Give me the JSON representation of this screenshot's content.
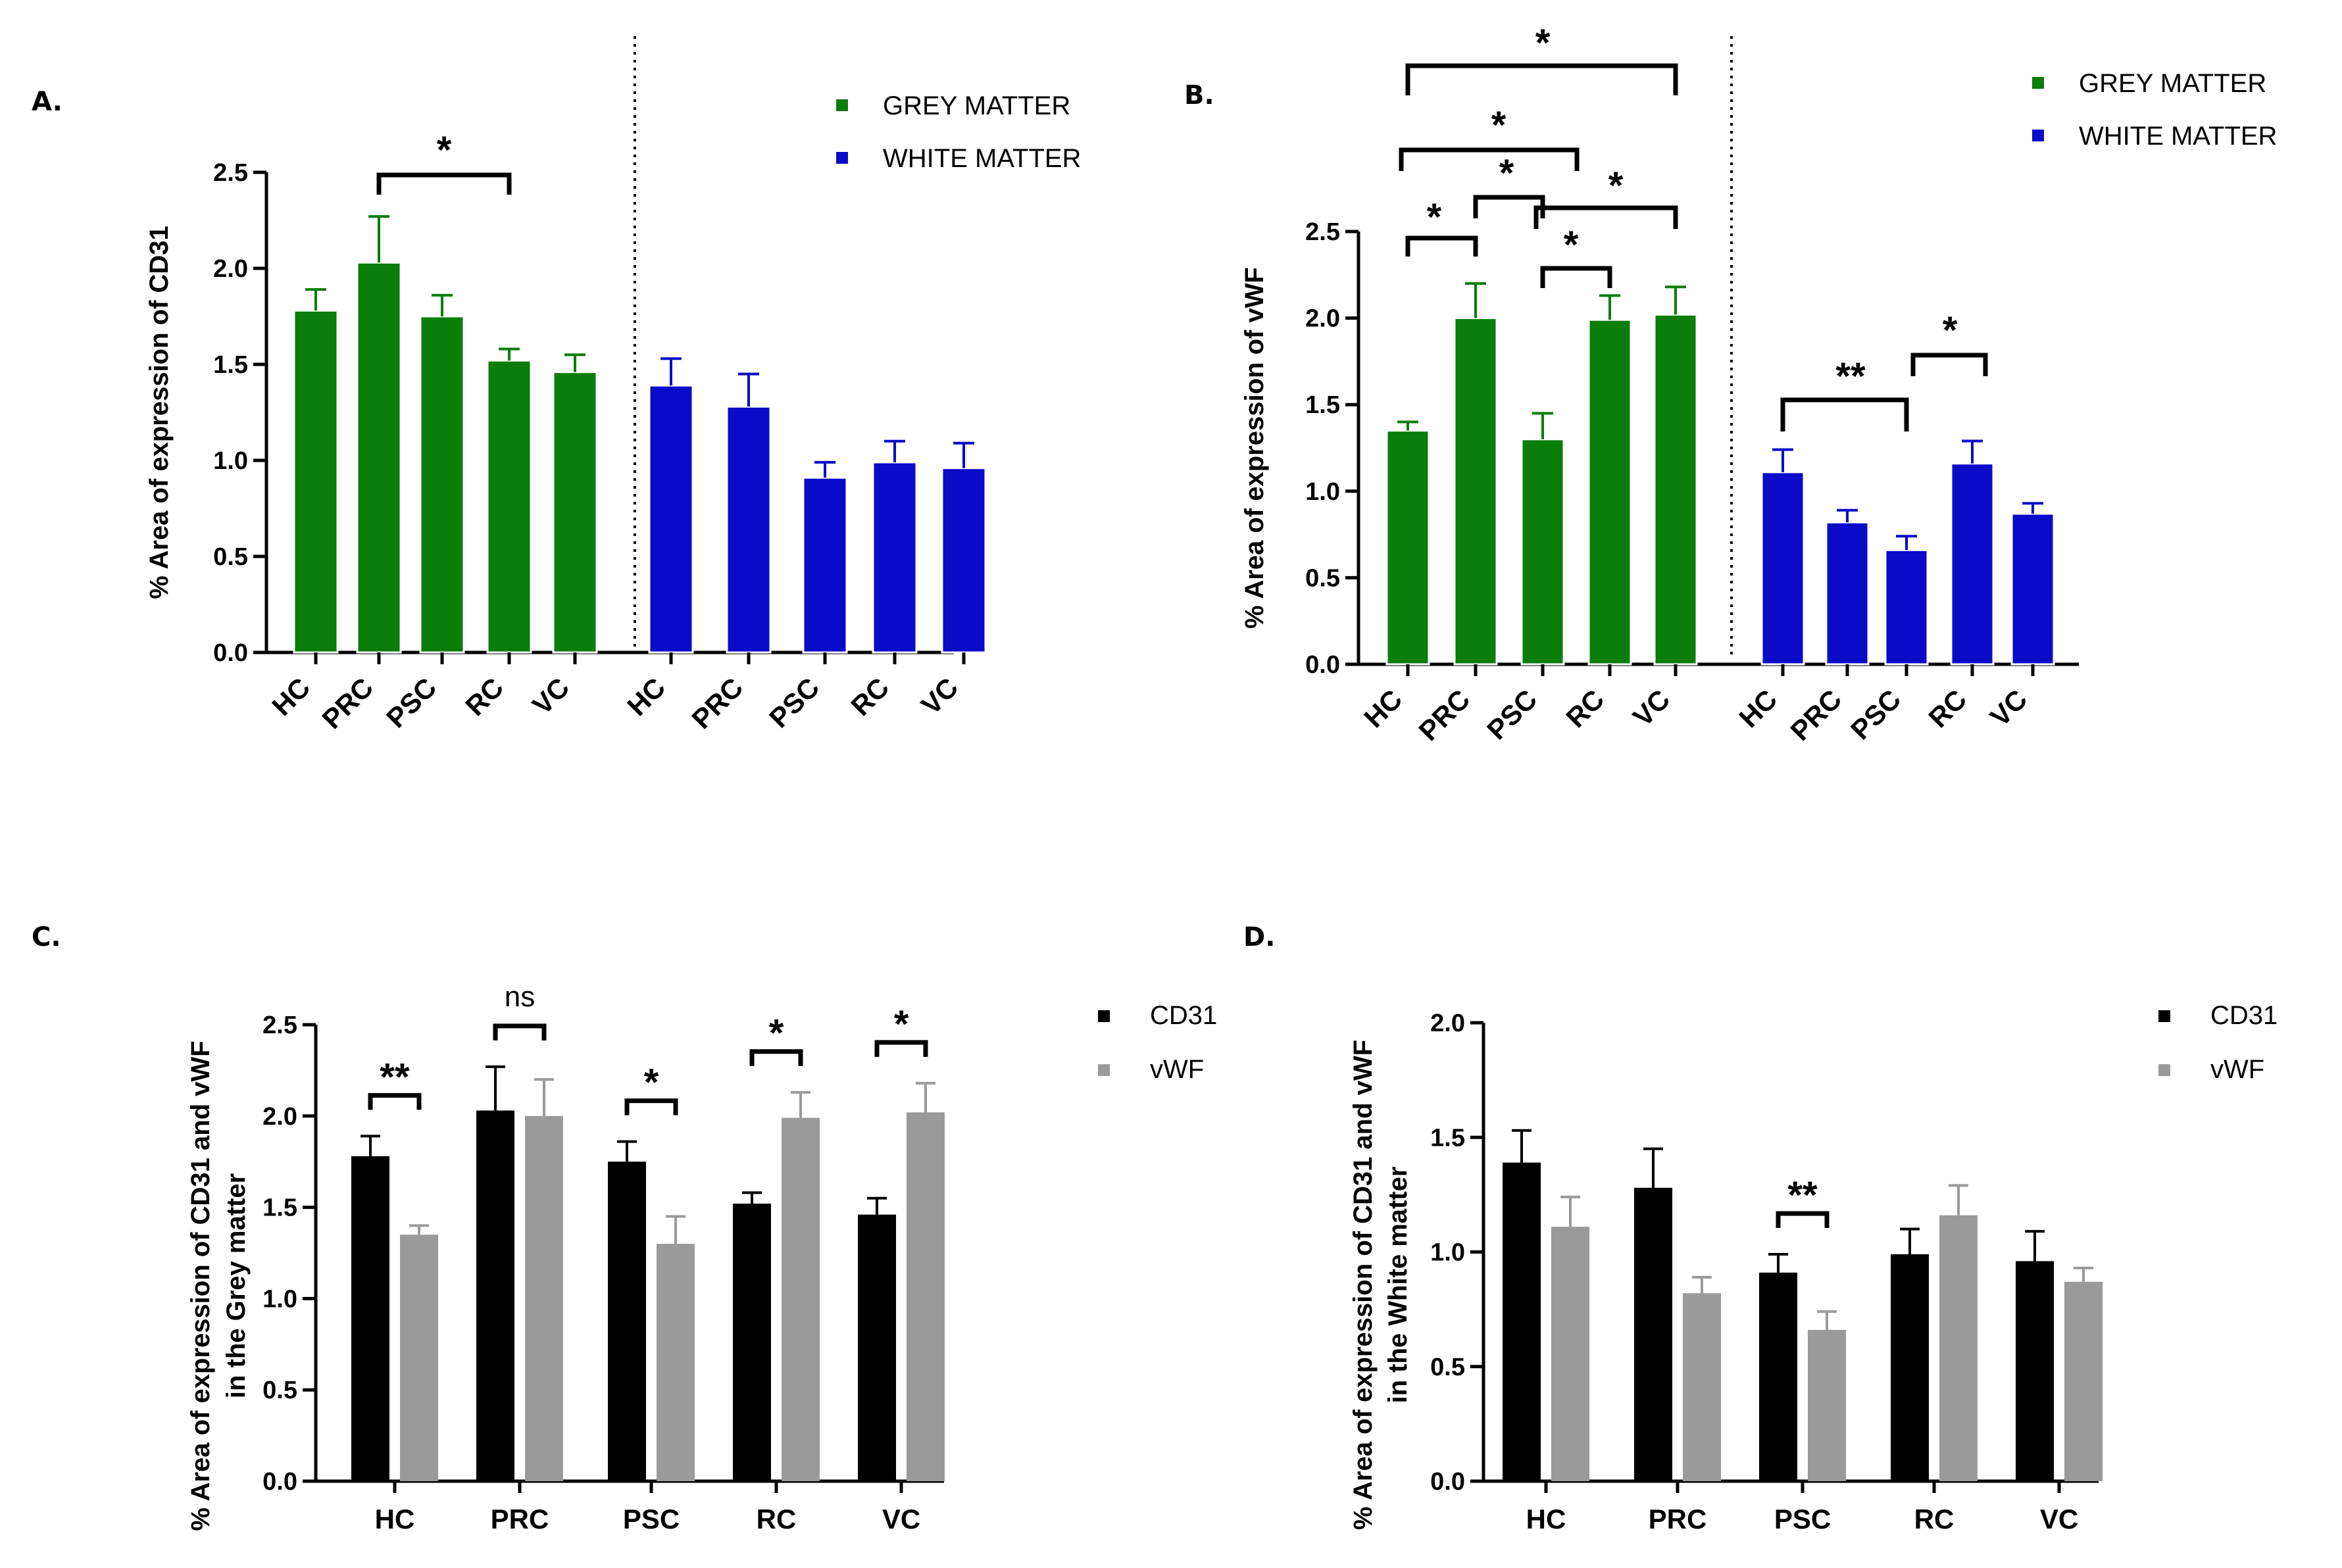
{
  "chart_data": [
    {
      "id": "A",
      "panel_label": "A.",
      "type": "bar",
      "ylabel": "% Area of expression of CD31",
      "ylim": [
        0,
        2.5
      ],
      "yticks": [
        "0.0",
        "0.5",
        "1.0",
        "1.5",
        "2.0",
        "2.5"
      ],
      "groups": [
        {
          "name": "GREY MATTER",
          "color": "#0a7d0a",
          "categories": [
            "HC",
            "PRC",
            "PSC",
            "RC",
            "VC"
          ],
          "values": [
            1.78,
            2.03,
            1.75,
            1.52,
            1.46
          ],
          "errors": [
            0.11,
            0.24,
            0.11,
            0.06,
            0.09
          ]
        },
        {
          "name": "WHITE MATTER",
          "color": "#0a0ac8",
          "categories": [
            "HC",
            "PRC",
            "PSC",
            "RC",
            "VC"
          ],
          "values": [
            1.39,
            1.28,
            0.91,
            0.99,
            0.96
          ],
          "errors": [
            0.14,
            0.17,
            0.08,
            0.11,
            0.13
          ]
        }
      ],
      "legend": [
        {
          "label": "GREY MATTER",
          "color": "#0a7d0a"
        },
        {
          "label": "WHITE MATTER",
          "color": "#0a0ac8"
        }
      ],
      "significance": [
        {
          "group": 0,
          "from": 1,
          "to": 3,
          "label": "*"
        }
      ]
    },
    {
      "id": "B",
      "panel_label": "B.",
      "type": "bar",
      "ylabel": "% Area of expression of vWF",
      "ylim": [
        0,
        2.5
      ],
      "yticks": [
        "0.0",
        "0.5",
        "1.0",
        "1.5",
        "2.0",
        "2.5"
      ],
      "groups": [
        {
          "name": "GREY MATTER",
          "color": "#0a7d0a",
          "categories": [
            "HC",
            "PRC",
            "PSC",
            "RC",
            "VC"
          ],
          "values": [
            1.35,
            2.0,
            1.3,
            1.99,
            2.02
          ],
          "errors": [
            0.05,
            0.2,
            0.15,
            0.14,
            0.16
          ]
        },
        {
          "name": "WHITE MATTER",
          "color": "#0a0ac8",
          "categories": [
            "HC",
            "PRC",
            "PSC",
            "RC",
            "VC"
          ],
          "values": [
            1.11,
            0.82,
            0.66,
            1.16,
            0.87
          ],
          "errors": [
            0.13,
            0.07,
            0.08,
            0.13,
            0.06
          ]
        }
      ],
      "legend": [
        {
          "label": "GREY MATTER",
          "color": "#0a7d0a"
        },
        {
          "label": "WHITE MATTER",
          "color": "#0a0ac8"
        }
      ],
      "significance": [
        {
          "group": 0,
          "from": 0,
          "to": 4,
          "label": "*"
        },
        {
          "group": 0,
          "from": 0,
          "to": 3,
          "label": "*"
        },
        {
          "group": 0,
          "from": 1,
          "to": 2,
          "label": "*"
        },
        {
          "group": 0,
          "from": 2,
          "to": 4,
          "label": "*"
        },
        {
          "group": 0,
          "from": 0,
          "to": 1,
          "label": "*"
        },
        {
          "group": 0,
          "from": 2,
          "to": 3,
          "label": "*"
        },
        {
          "group": 1,
          "from": 0,
          "to": 2,
          "label": "**"
        },
        {
          "group": 1,
          "from": 2,
          "to": 3,
          "label": "*"
        }
      ]
    },
    {
      "id": "C",
      "panel_label": "C.",
      "type": "bar",
      "ylabel": [
        "% Area of expression of CD31 and vWF",
        "in the Grey matter"
      ],
      "ylim": [
        0,
        2.5
      ],
      "yticks": [
        "0.0",
        "0.5",
        "1.0",
        "1.5",
        "2.0",
        "2.5"
      ],
      "categories": [
        "HC",
        "PRC",
        "PSC",
        "RC",
        "VC"
      ],
      "series": [
        {
          "name": "CD31",
          "color": "#000000",
          "values": [
            1.78,
            2.03,
            1.75,
            1.52,
            1.46
          ],
          "errors": [
            0.11,
            0.24,
            0.11,
            0.06,
            0.09
          ]
        },
        {
          "name": "vWF",
          "color": "#9a9a9a",
          "values": [
            1.35,
            2.0,
            1.3,
            1.99,
            2.02
          ],
          "errors": [
            0.05,
            0.2,
            0.15,
            0.14,
            0.16
          ]
        }
      ],
      "legend": [
        {
          "label": "CD31",
          "color": "#000000"
        },
        {
          "label": "vWF",
          "color": "#9a9a9a"
        }
      ],
      "significance": [
        {
          "category": 0,
          "label": "**"
        },
        {
          "category": 1,
          "label": "ns"
        },
        {
          "category": 2,
          "label": "*"
        },
        {
          "category": 3,
          "label": "*"
        },
        {
          "category": 4,
          "label": "*"
        }
      ]
    },
    {
      "id": "D",
      "panel_label": "D.",
      "type": "bar",
      "ylabel": [
        "% Area of expression of CD31 and vWF",
        "in the White matter"
      ],
      "ylim": [
        0,
        2.0
      ],
      "yticks": [
        "0.0",
        "0.5",
        "1.0",
        "1.5",
        "2.0"
      ],
      "categories": [
        "HC",
        "PRC",
        "PSC",
        "RC",
        "VC"
      ],
      "series": [
        {
          "name": "CD31",
          "color": "#000000",
          "values": [
            1.39,
            1.28,
            0.91,
            0.99,
            0.96
          ],
          "errors": [
            0.14,
            0.17,
            0.08,
            0.11,
            0.13
          ]
        },
        {
          "name": "vWF",
          "color": "#9a9a9a",
          "values": [
            1.11,
            0.82,
            0.66,
            1.16,
            0.87
          ],
          "errors": [
            0.13,
            0.07,
            0.08,
            0.13,
            0.06
          ]
        }
      ],
      "legend": [
        {
          "label": "CD31",
          "color": "#000000"
        },
        {
          "label": "vWF",
          "color": "#9a9a9a"
        }
      ],
      "significance": [
        {
          "category": 2,
          "label": "**"
        }
      ]
    }
  ]
}
